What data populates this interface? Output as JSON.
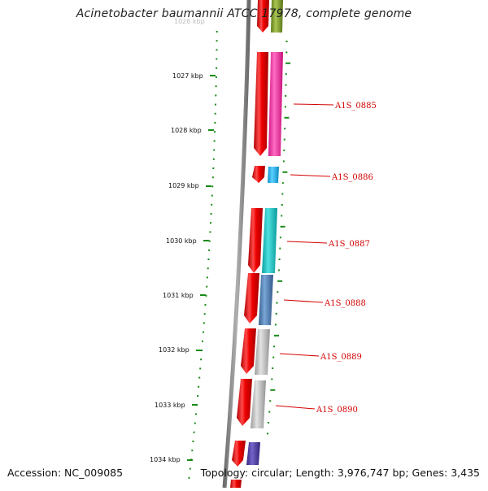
{
  "header": {
    "title": "Acinetobacter baumannii ATCC 17978, complete genome"
  },
  "footer": {
    "accession": "Accession: NC_009085",
    "summary": "Topology: circular; Length: 3,976,747 bp; Genes: 3,435"
  },
  "map": {
    "partial_tick_label": "1026 kbp",
    "ticks": [
      "1027 kbp",
      "1028 kbp",
      "1029 kbp",
      "1030 kbp",
      "1031 kbp",
      "1032 kbp",
      "1033 kbp",
      "1034 kbp"
    ],
    "genes": [
      "A1S_0885",
      "A1S_0886",
      "A1S_0887",
      "A1S_0888",
      "A1S_0889",
      "A1S_0890"
    ],
    "colors": {
      "backbone": "#8a8a8a",
      "tick_marks": "#1a8a1a",
      "gene_red": "#ee0000",
      "label_red": "#d40000",
      "olive": "#7a9a2a",
      "magenta": "#ff2fa8",
      "sky_blue": "#1ab2f0",
      "teal": "#17c4c4",
      "steel_blue": "#4a80b8",
      "silver": "#b8b8b8",
      "indigo": "#4a3aa0"
    }
  }
}
